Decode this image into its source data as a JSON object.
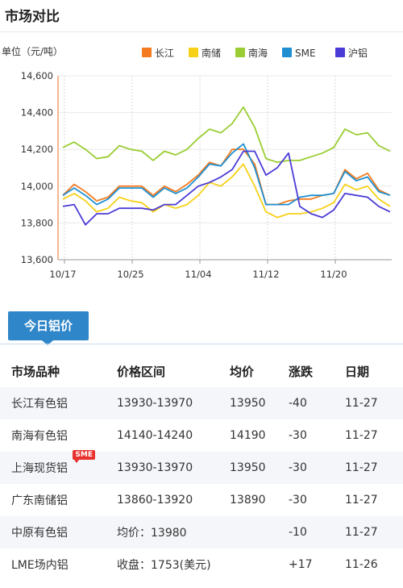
{
  "header": {
    "title": "市场对比"
  },
  "chart_data": {
    "type": "line",
    "ylabel": "单位（元/吨）",
    "ylim": [
      13600,
      14600
    ],
    "yticks": [
      "14,600",
      "14,400",
      "14,200",
      "14,000",
      "13,800",
      "13,600"
    ],
    "ytick_values": [
      14600,
      14400,
      14200,
      14000,
      13800,
      13600
    ],
    "xticks": [
      "10/17",
      "10/25",
      "11/04",
      "11/12",
      "11/20"
    ],
    "xtick_index": [
      0,
      6,
      12,
      18,
      24
    ],
    "grid": true,
    "legend_position": "top-right",
    "series": [
      {
        "name": "长江",
        "color": "#f47b20",
        "values": [
          13950,
          14010,
          13970,
          13920,
          13940,
          14000,
          14000,
          14000,
          13950,
          14000,
          13970,
          14010,
          14060,
          14130,
          14110,
          14200,
          14200,
          14120,
          13900,
          13900,
          13920,
          13930,
          13930,
          13950,
          13960,
          14090,
          14040,
          14070,
          13980,
          13950
        ]
      },
      {
        "name": "南储",
        "color": "#f7d117",
        "values": [
          13930,
          13960,
          13920,
          13860,
          13880,
          13940,
          13920,
          13910,
          13860,
          13900,
          13880,
          13900,
          13950,
          14020,
          14000,
          14050,
          14120,
          14000,
          13860,
          13830,
          13850,
          13850,
          13860,
          13880,
          13910,
          14010,
          13980,
          14000,
          13930,
          13890
        ]
      },
      {
        "name": "南海",
        "color": "#9acd32",
        "values": [
          14210,
          14240,
          14200,
          14150,
          14160,
          14220,
          14200,
          14190,
          14140,
          14190,
          14170,
          14200,
          14260,
          14310,
          14290,
          14340,
          14430,
          14320,
          14150,
          14130,
          14140,
          14140,
          14160,
          14180,
          14210,
          14310,
          14280,
          14290,
          14220,
          14190
        ]
      },
      {
        "name": "SME",
        "color": "#1e90d2",
        "values": [
          13950,
          13990,
          13950,
          13900,
          13930,
          13990,
          13990,
          13990,
          13940,
          13990,
          13960,
          13990,
          14050,
          14120,
          14110,
          14180,
          14230,
          14100,
          13900,
          13900,
          13900,
          13940,
          13950,
          13950,
          13960,
          14080,
          14030,
          14050,
          13970,
          13950
        ]
      },
      {
        "name": "沪铝",
        "color": "#4b3bd6",
        "values": [
          13890,
          13900,
          13790,
          13850,
          13850,
          13880,
          13880,
          13880,
          13870,
          13900,
          13900,
          13950,
          14000,
          14020,
          14050,
          14090,
          14190,
          14190,
          14060,
          14100,
          14180,
          13890,
          13850,
          13830,
          13870,
          13960,
          13950,
          13940,
          13890,
          13860
        ]
      }
    ]
  },
  "section": {
    "tab_label": "今日铝价"
  },
  "table": {
    "headers": [
      "市场品种",
      "价格区间",
      "均价",
      "涨跌",
      "日期"
    ],
    "badge": "SME",
    "rows": [
      {
        "name": "长江有色铝",
        "range": "13930-13970",
        "avg": "13950",
        "change": "-40",
        "date": "11-27"
      },
      {
        "name": "南海有色铝",
        "range": "14140-14240",
        "avg": "14190",
        "change": "-30",
        "date": "11-27"
      },
      {
        "name": "上海现货铝",
        "range": "13930-13970",
        "avg": "13950",
        "change": "-30",
        "date": "11-27"
      },
      {
        "name": "广东南储铝",
        "range": "13860-13920",
        "avg": "13890",
        "change": "-30",
        "date": "11-27"
      },
      {
        "name": "中原有色铝",
        "range": "均价：13980",
        "avg": "",
        "change": "-10",
        "date": "11-27"
      },
      {
        "name": "LME场内铝",
        "range": "收盘：1753(美元)",
        "avg": "",
        "change": "+17",
        "date": "11-26"
      }
    ]
  }
}
